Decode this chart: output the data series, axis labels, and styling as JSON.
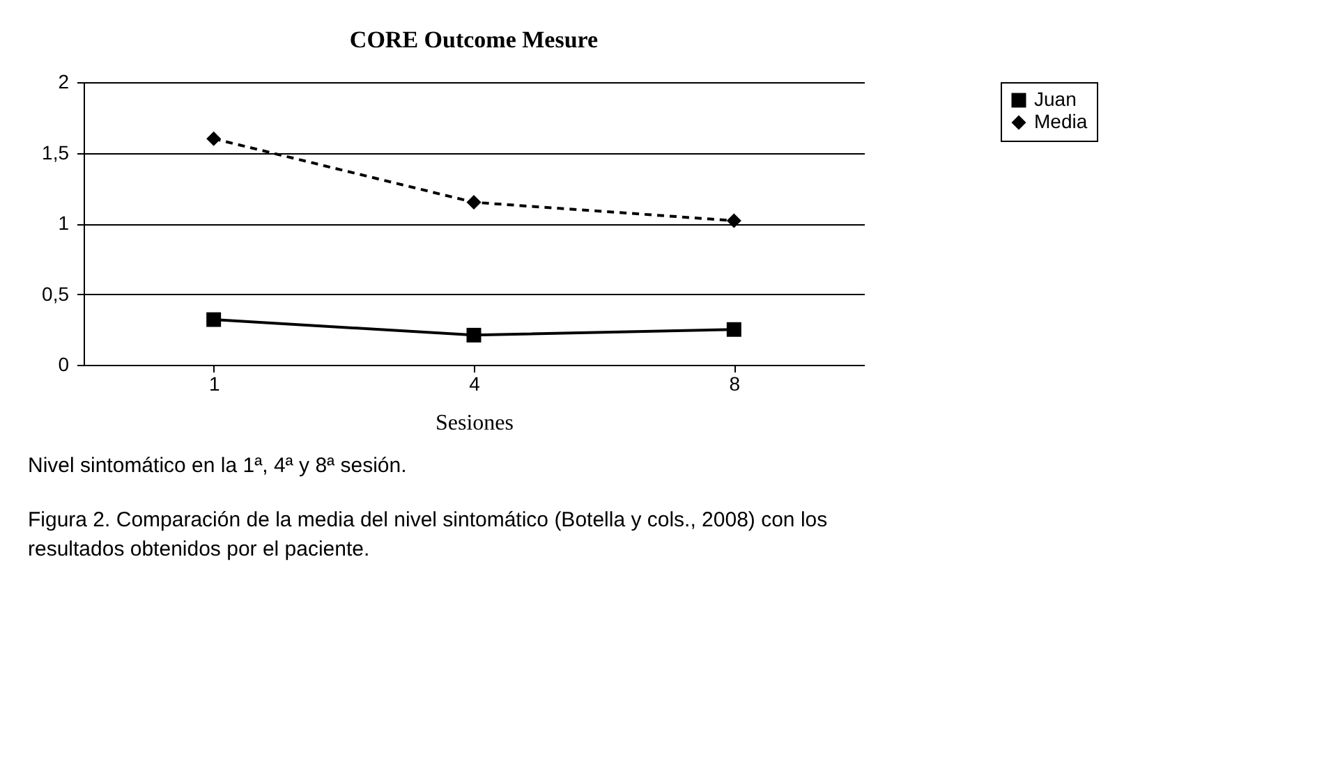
{
  "chart_data": {
    "type": "line",
    "title": "CORE Outcome Mesure",
    "xlabel": "Sesiones",
    "categories": [
      "1",
      "4",
      "8"
    ],
    "series": [
      {
        "name": "Juan",
        "color": "#000000",
        "values": [
          0.32,
          0.21,
          0.25
        ],
        "marker": "square",
        "line_style": "solid"
      },
      {
        "name": "Media",
        "color": "#000000",
        "values": [
          1.6,
          1.15,
          1.02
        ],
        "marker": "diamond",
        "line_style": "dashed"
      }
    ],
    "ylim": [
      0,
      2
    ],
    "yticks": [
      0,
      {
        "value": 0.5,
        "label": "0,5"
      },
      1,
      {
        "value": 1.5,
        "label": "1,5"
      },
      2
    ],
    "grid": "y",
    "legend": "right",
    "annotations": [
      "Nivel sintomático en la 1ª, 4ª y 8ª sesión.",
      "Figura 2. Comparación de la media del nivel sintomático (Botella y cols., 2008) con los resultados obtenidos por el paciente."
    ]
  }
}
